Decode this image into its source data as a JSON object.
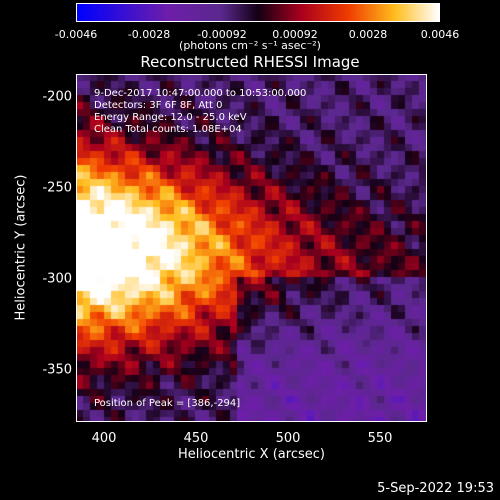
{
  "chart_data": {
    "type": "heatmap",
    "title": "Reconstructed RHESSI Image",
    "xlabel": "Heliocentric X (arcsec)",
    "ylabel": "Heliocentric Y (arcsec)",
    "xlim": [
      385,
      575
    ],
    "ylim": [
      -380,
      -190
    ],
    "x_ticks": [
      "400",
      "450",
      "500",
      "550"
    ],
    "y_ticks": [
      "-200",
      "-250",
      "-300",
      "-350"
    ],
    "colorbar": {
      "ticks": [
        "-0.0046",
        "-0.0028",
        "-0.00092",
        "0.00092",
        "0.0028",
        "0.0046"
      ],
      "unit": "(photons cm⁻² s⁻¹ asec⁻²)",
      "range": [
        -0.0046,
        0.0046
      ]
    },
    "annotations": {
      "time": "9-Dec-2017 10:47:00.000 to 10:53:00.000",
      "detectors": "Detectors: 3F 6F 8F, Att 0",
      "energy": "Energy Range: 12.0 - 25.0 keV",
      "clean": "Clean    Total counts: 1.08E+04",
      "peak": "Position of Peak = [386,-294]"
    },
    "peak": {
      "x": 386,
      "y": -294
    }
  },
  "footer": {
    "date": "5-Sep-2022 19:53"
  }
}
